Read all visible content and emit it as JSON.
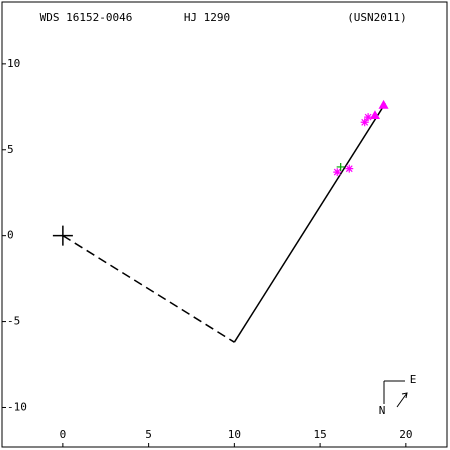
{
  "chart_data": {
    "type": "scatter",
    "title": "WDS 16152-0046",
    "subtitle": "HJ 1290",
    "source": "(USN2011)",
    "compass": {
      "east": "E",
      "north": "N"
    },
    "xlim": [
      -3.55,
      22.4
    ],
    "ylim": [
      -12.3,
      13.6
    ],
    "xticks": [
      0,
      5,
      10,
      15,
      20
    ],
    "yticks": [
      10,
      5,
      0,
      -5,
      -10
    ],
    "primary": {
      "x": 0,
      "y": 0
    },
    "lines": [
      {
        "style": "dashed",
        "x": [
          0,
          10
        ],
        "y": [
          0,
          -6.2
        ]
      },
      {
        "style": "solid",
        "x": [
          10,
          18.8
        ],
        "y": [
          -6.2,
          7.7
        ]
      }
    ],
    "series": [
      {
        "marker": "asterisk",
        "color": "#ff00ff",
        "x": [
          16.0,
          16.7,
          17.6,
          17.8
        ],
        "y": [
          3.7,
          3.9,
          6.6,
          6.9
        ]
      },
      {
        "marker": "triangle",
        "color": "#ff00ff",
        "x": [
          18.2,
          18.7
        ],
        "y": [
          7.0,
          7.6
        ]
      },
      {
        "marker": "plus",
        "color": "#00a000",
        "x": [
          16.2
        ],
        "y": [
          4.0
        ]
      }
    ]
  }
}
